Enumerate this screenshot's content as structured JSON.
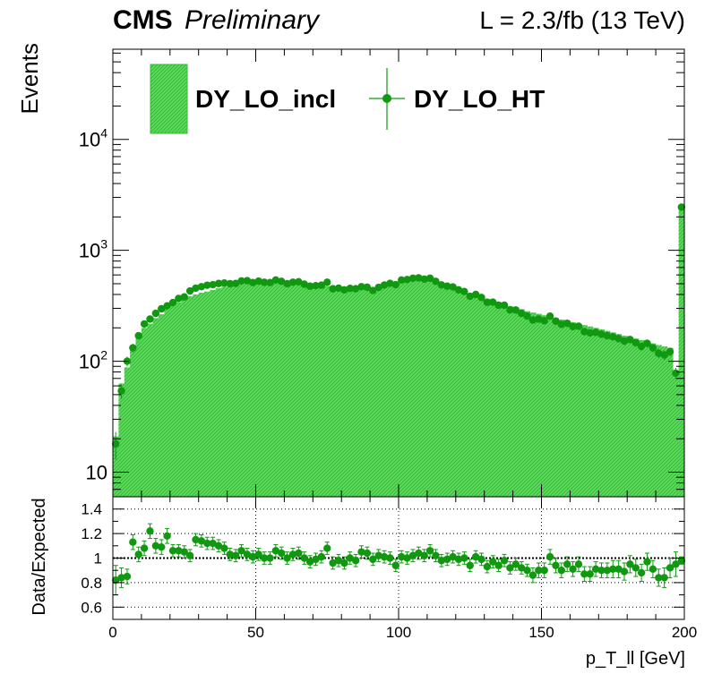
{
  "header": {
    "experiment": "CMS",
    "status": "Preliminary",
    "lumi": "L = 2.3/fb (13 TeV)"
  },
  "colors": {
    "histogram_fill": "#33cc33",
    "histogram_hatch": "#66dd66",
    "marker": "#109910",
    "axis": "#000000"
  },
  "chart_data": [
    {
      "type": "area",
      "panel": "main",
      "yscale": "log",
      "ylabel": "Events",
      "xlim": [
        0,
        200
      ],
      "ylim": [
        6,
        65000
      ],
      "y_ticks": [
        {
          "value": 10,
          "label": "10"
        },
        {
          "value": 100,
          "label": "10^2"
        },
        {
          "value": 1000,
          "label": "10^3"
        },
        {
          "value": 10000,
          "label": "10^4"
        }
      ],
      "legend": {
        "placement": "top-left",
        "entries": [
          "DY_LO_incl",
          "DY_LO_HT"
        ]
      },
      "bin_width": 2,
      "x": [
        1,
        3,
        5,
        7,
        9,
        11,
        13,
        15,
        17,
        19,
        21,
        23,
        25,
        27,
        29,
        31,
        33,
        35,
        37,
        39,
        41,
        43,
        45,
        47,
        49,
        51,
        53,
        55,
        57,
        59,
        61,
        63,
        65,
        67,
        69,
        71,
        73,
        75,
        77,
        79,
        81,
        83,
        85,
        87,
        89,
        91,
        93,
        95,
        97,
        99,
        101,
        103,
        105,
        107,
        109,
        111,
        113,
        115,
        117,
        119,
        121,
        123,
        125,
        127,
        129,
        131,
        133,
        135,
        137,
        139,
        141,
        143,
        145,
        147,
        149,
        151,
        153,
        155,
        157,
        159,
        161,
        163,
        165,
        167,
        169,
        171,
        173,
        175,
        177,
        179,
        181,
        183,
        185,
        187,
        189,
        191,
        193,
        195,
        197,
        199
      ],
      "series": [
        {
          "name": "DY_LO_incl",
          "style": "hatched-fill",
          "values": [
            21,
            63,
            88,
            125,
            165,
            200,
            218,
            245,
            265,
            295,
            320,
            340,
            365,
            385,
            400,
            415,
            425,
            440,
            455,
            470,
            480,
            492,
            500,
            505,
            508,
            512,
            515,
            512,
            508,
            505,
            502,
            500,
            498,
            495,
            490,
            485,
            480,
            475,
            470,
            465,
            458,
            452,
            458,
            450,
            445,
            440,
            455,
            480,
            505,
            520,
            535,
            545,
            550,
            545,
            540,
            530,
            515,
            500,
            480,
            462,
            445,
            425,
            410,
            395,
            380,
            365,
            352,
            340,
            328,
            315,
            305,
            295,
            283,
            275,
            268,
            260,
            252,
            245,
            238,
            232,
            225,
            218,
            212,
            206,
            200,
            194,
            188,
            182,
            176,
            170,
            165,
            160,
            155,
            150,
            145,
            140,
            136,
            132,
            82,
            2500
          ]
        },
        {
          "name": "DY_LO_HT",
          "style": "points",
          "values": [
            18,
            54,
            100,
            132,
            170,
            217,
            240,
            270,
            297,
            316,
            338,
            368,
            380,
            430,
            456,
            470,
            484,
            490,
            502,
            507,
            500,
            503,
            530,
            533,
            512,
            528,
            515,
            512,
            540,
            525,
            500,
            516,
            520,
            495,
            475,
            480,
            485,
            515,
            450,
            456,
            440,
            454,
            450,
            470,
            465,
            434,
            463,
            486,
            504,
            490,
            540,
            545,
            560,
            565,
            550,
            560,
            525,
            488,
            475,
            468,
            440,
            425,
            385,
            400,
            376,
            340,
            341,
            320,
            320,
            290,
            290,
            270,
            255,
            235,
            240,
            232,
            255,
            230,
            215,
            220,
            205,
            207,
            185,
            180,
            182,
            175,
            170,
            166,
            160,
            152,
            157,
            147,
            136,
            145,
            132,
            118,
            114,
            122,
            78,
            2450
          ],
          "errors": [
            5,
            8,
            10,
            12,
            13,
            15,
            16,
            17,
            18,
            18,
            19,
            20,
            20,
            21,
            22,
            22,
            22,
            22,
            23,
            23,
            23,
            23,
            23,
            23,
            23,
            23,
            23,
            23,
            23,
            23,
            23,
            23,
            23,
            23,
            22,
            22,
            22,
            22,
            21,
            21,
            21,
            21,
            21,
            21,
            21,
            21,
            22,
            22,
            22,
            22,
            23,
            23,
            23,
            24,
            24,
            23,
            23,
            22,
            22,
            22,
            21,
            21,
            20,
            20,
            19,
            19,
            19,
            18,
            18,
            17,
            17,
            16,
            16,
            15,
            15,
            15,
            16,
            15,
            15,
            15,
            14,
            14,
            14,
            13,
            13,
            13,
            13,
            13,
            13,
            12,
            12,
            12,
            12,
            12,
            11,
            11,
            11,
            11,
            9,
            50
          ]
        }
      ]
    },
    {
      "type": "scatter",
      "panel": "ratio",
      "ylabel": "Data/Expected",
      "xlabel": "p_T_ll [GeV]",
      "xlim": [
        0,
        200
      ],
      "ylim": [
        0.5,
        1.5
      ],
      "grid": true,
      "x_tick_labels": [
        "0",
        "50",
        "100",
        "150",
        "200"
      ],
      "y_tick_labels": [
        "0.6",
        "0.8",
        "1",
        "1.2",
        "1.4"
      ],
      "x": [
        1,
        3,
        5,
        7,
        9,
        11,
        13,
        15,
        17,
        19,
        21,
        23,
        25,
        27,
        29,
        31,
        33,
        35,
        37,
        39,
        41,
        43,
        45,
        47,
        49,
        51,
        53,
        55,
        57,
        59,
        61,
        63,
        65,
        67,
        69,
        71,
        73,
        75,
        77,
        79,
        81,
        83,
        85,
        87,
        89,
        91,
        93,
        95,
        97,
        99,
        101,
        103,
        105,
        107,
        109,
        111,
        113,
        115,
        117,
        119,
        121,
        123,
        125,
        127,
        129,
        131,
        133,
        135,
        137,
        139,
        141,
        143,
        145,
        147,
        149,
        151,
        153,
        155,
        157,
        159,
        161,
        163,
        165,
        167,
        169,
        171,
        173,
        175,
        177,
        179,
        181,
        183,
        185,
        187,
        189,
        191,
        193,
        195,
        197,
        199
      ],
      "values": [
        0.82,
        0.84,
        0.85,
        1.13,
        1.03,
        1.08,
        1.22,
        1.1,
        1.09,
        1.18,
        1.06,
        1.06,
        1.05,
        1.02,
        1.15,
        1.14,
        1.12,
        1.12,
        1.1,
        1.08,
        1.03,
        1.02,
        1.06,
        1.03,
        1.01,
        1.03,
        1.0,
        1.0,
        1.06,
        1.04,
        1.0,
        1.03,
        1.04,
        1.0,
        0.97,
        0.99,
        1.01,
        1.08,
        0.96,
        0.98,
        0.96,
        1.0,
        0.98,
        1.05,
        1.04,
        0.99,
        1.02,
        1.01,
        1.0,
        0.94,
        1.01,
        1.0,
        1.02,
        1.04,
        1.02,
        1.06,
        1.02,
        0.98,
        0.99,
        1.01,
        0.99,
        1.0,
        0.94,
        1.01,
        0.99,
        0.93,
        0.97,
        0.94,
        0.98,
        0.92,
        0.95,
        0.92,
        0.9,
        0.86,
        0.9,
        0.9,
        1.01,
        0.94,
        0.9,
        0.95,
        0.91,
        0.95,
        0.87,
        0.87,
        0.91,
        0.9,
        0.9,
        0.91,
        0.91,
        0.89,
        0.95,
        0.92,
        0.88,
        0.97,
        0.91,
        0.84,
        0.84,
        0.92,
        0.95,
        0.98
      ],
      "errors": [
        0.12,
        0.08,
        0.06,
        0.06,
        0.06,
        0.06,
        0.06,
        0.06,
        0.06,
        0.06,
        0.05,
        0.05,
        0.05,
        0.05,
        0.05,
        0.05,
        0.05,
        0.05,
        0.05,
        0.05,
        0.05,
        0.05,
        0.05,
        0.05,
        0.05,
        0.05,
        0.05,
        0.05,
        0.05,
        0.05,
        0.05,
        0.05,
        0.05,
        0.05,
        0.05,
        0.05,
        0.05,
        0.05,
        0.05,
        0.05,
        0.05,
        0.05,
        0.05,
        0.05,
        0.05,
        0.05,
        0.05,
        0.05,
        0.05,
        0.05,
        0.05,
        0.05,
        0.05,
        0.05,
        0.05,
        0.05,
        0.05,
        0.05,
        0.05,
        0.05,
        0.05,
        0.05,
        0.05,
        0.05,
        0.05,
        0.05,
        0.05,
        0.05,
        0.05,
        0.05,
        0.05,
        0.05,
        0.05,
        0.06,
        0.06,
        0.06,
        0.06,
        0.06,
        0.06,
        0.06,
        0.06,
        0.06,
        0.06,
        0.06,
        0.06,
        0.06,
        0.06,
        0.07,
        0.07,
        0.07,
        0.07,
        0.07,
        0.07,
        0.07,
        0.07,
        0.07,
        0.08,
        0.08,
        0.1,
        0.03
      ]
    }
  ]
}
